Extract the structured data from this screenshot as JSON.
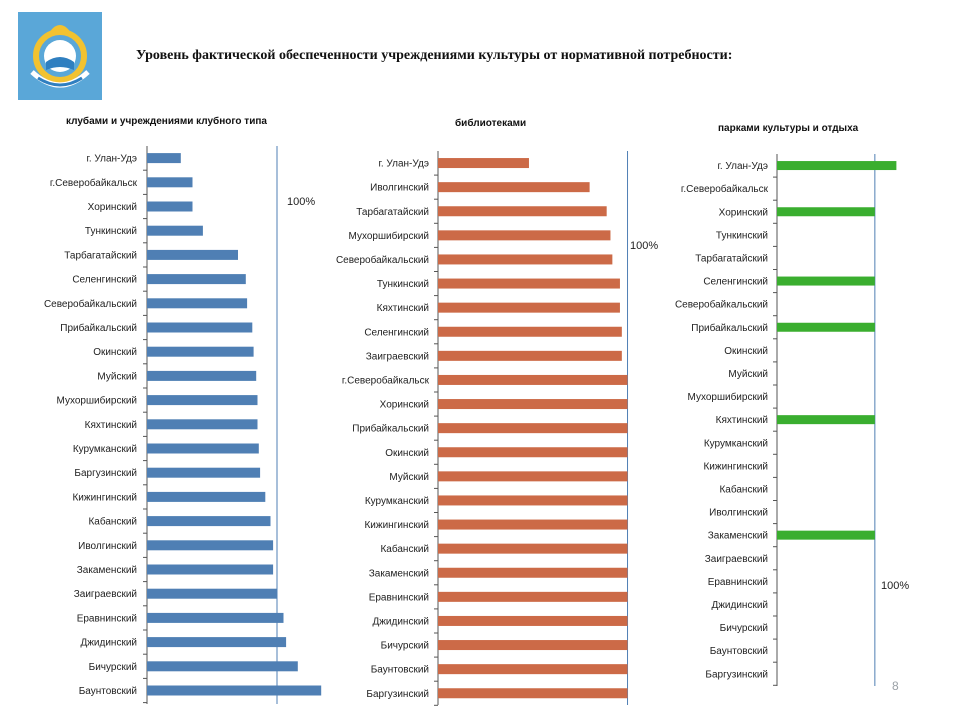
{
  "slide": {
    "title": "Уровень фактической обеспеченности учреждениями культуры от нормативной потребности:",
    "page_number": "8"
  },
  "colors": {
    "clubs": "#4f7fb4",
    "libraries": "#cc6a47",
    "parks": "#3aae2f",
    "reference_line": "#4f7fb4",
    "axis": "#555555"
  },
  "chart_data": [
    {
      "type": "bar",
      "orientation": "horizontal",
      "title": "клубами  и учреждениями клубного типа",
      "reference_label": "100%",
      "reference_value": 100,
      "xlim": [
        0,
        150
      ],
      "categories": [
        "г. Улан-Удэ",
        "г.Северобайкальск",
        "Хоринский",
        "Тункинский",
        "Тарбагатайский",
        "Селенгинский",
        "Северобайкальский",
        "Прибайкальский",
        "Окинский",
        "Муйский",
        "Мухоршибирский",
        "Кяхтинский",
        "Курумканский",
        "Баргузинский",
        "Кижингинский",
        "Кабанский",
        "Иволгинский",
        "Закаменский",
        "Заиграевский",
        "Еравнинский",
        "Джидинский",
        "Бичурский",
        "Баунтовский"
      ],
      "values": [
        26,
        35,
        35,
        43,
        70,
        76,
        77,
        81,
        82,
        84,
        85,
        85,
        86,
        87,
        91,
        95,
        97,
        97,
        100,
        105,
        107,
        116,
        134
      ]
    },
    {
      "type": "bar",
      "orientation": "horizontal",
      "title": "библиотеками",
      "reference_label": "100%",
      "reference_value": 100,
      "xlim": [
        0,
        105
      ],
      "categories": [
        "г. Улан-Удэ",
        "Иволгинский",
        "Тарбагатайский",
        "Мухоршибирский",
        "Северобайкальский",
        "Тункинский",
        "Кяхтинский",
        "Селенгинский",
        "Заиграевский",
        "г.Северобайкальск",
        "Хоринский",
        "Прибайкальский",
        "Окинский",
        "Муйский",
        "Курумканский",
        "Кижингинский",
        "Кабанский",
        "Закаменский",
        "Еравнинский",
        "Джидинский",
        "Бичурский",
        "Баунтовский",
        "Баргузинский"
      ],
      "values": [
        48,
        80,
        89,
        91,
        92,
        96,
        96,
        97,
        97,
        100,
        100,
        100,
        100,
        100,
        100,
        100,
        100,
        100,
        100,
        100,
        100,
        100,
        100
      ]
    },
    {
      "type": "bar",
      "orientation": "horizontal",
      "title": "парками культуры и отдыха",
      "reference_label": "100%",
      "reference_value": 100,
      "xlim": [
        0,
        140
      ],
      "categories": [
        "г. Улан-Удэ",
        "г.Северобайкальск",
        "Хоринский",
        "Тункинский",
        "Тарбагатайский",
        "Селенгинский",
        "Северобайкальский",
        "Прибайкальский",
        "Окинский",
        "Муйский",
        "Мухоршибирский",
        "Кяхтинский",
        "Курумканский",
        "Кижингинский",
        "Кабанский",
        "Иволгинский",
        "Закаменский",
        "Заиграевский",
        "Еравнинский",
        "Джидинский",
        "Бичурский",
        "Баунтовский",
        "Баргузинский"
      ],
      "values": [
        122,
        0,
        100,
        0,
        0,
        100,
        0,
        100,
        0,
        0,
        0,
        100,
        0,
        0,
        0,
        0,
        100,
        0,
        0,
        0,
        0,
        0,
        0
      ]
    }
  ]
}
